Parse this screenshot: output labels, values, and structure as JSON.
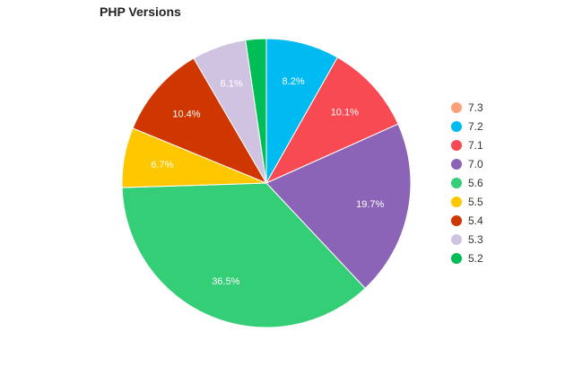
{
  "chart_data": {
    "type": "pie",
    "title": "PHP Versions",
    "slices": [
      {
        "label": "7.3",
        "value": 0.0,
        "percent_label": "",
        "color": "#FFA07A"
      },
      {
        "label": "7.2",
        "value": 8.2,
        "percent_label": "8.2%",
        "color": "#00BAF2"
      },
      {
        "label": "7.1",
        "value": 10.1,
        "percent_label": "10.1%",
        "color": "#F84A52"
      },
      {
        "label": "7.0",
        "value": 19.7,
        "percent_label": "19.7%",
        "color": "#8B64B7"
      },
      {
        "label": "5.6",
        "value": 36.5,
        "percent_label": "36.5%",
        "color": "#33CE76"
      },
      {
        "label": "5.5",
        "value": 6.7,
        "percent_label": "6.7%",
        "color": "#FFC700"
      },
      {
        "label": "5.4",
        "value": 10.4,
        "percent_label": "10.4%",
        "color": "#D03600"
      },
      {
        "label": "5.3",
        "value": 6.1,
        "percent_label": "6.1%",
        "color": "#D0C3E2"
      },
      {
        "label": "5.2",
        "value": 2.3,
        "percent_label": "",
        "color": "#00BD56"
      }
    ],
    "legend_position": "right"
  }
}
